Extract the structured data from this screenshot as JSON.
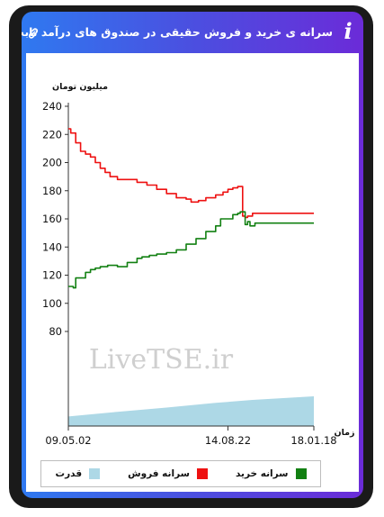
{
  "header": {
    "title": "سرانه ی خرید و فروش حقیقی در صندوق های درآمد ثابت",
    "info_icon": "info-icon",
    "link_icon": "link-icon"
  },
  "watermark": "LiveTSE.ir",
  "colors": {
    "sell": "#ee1111",
    "buy": "#128012",
    "power": "#add8e6",
    "header_start": "#2f79f0",
    "header_end": "#6b2bd8"
  },
  "chart_data": {
    "type": "line",
    "ylabel": "میلیون تومان",
    "xlabel": "زمان",
    "ylim": [
      80,
      240
    ],
    "y_ticks": [
      "240",
      "220",
      "200",
      "180",
      "160",
      "140",
      "120",
      "100",
      "80"
    ],
    "x_tick_labels": [
      "09.05.02",
      "14.08.22",
      "18.01.18"
    ],
    "x_tick_values": [
      0,
      0.65,
      1
    ],
    "grid": false,
    "legend_position": "bottom",
    "series": [
      {
        "name": "سرانه فروش",
        "color": "#ee1111",
        "x": [
          0,
          0.01,
          0.03,
          0.05,
          0.07,
          0.09,
          0.11,
          0.13,
          0.15,
          0.17,
          0.2,
          0.24,
          0.28,
          0.32,
          0.36,
          0.4,
          0.44,
          0.48,
          0.5,
          0.53,
          0.56,
          0.6,
          0.63,
          0.65,
          0.67,
          0.69,
          0.7,
          0.71,
          0.72,
          0.73,
          0.75,
          0.8,
          0.9,
          1.0
        ],
        "values": [
          224,
          221,
          214,
          208,
          206,
          204,
          200,
          196,
          193,
          190,
          188,
          188,
          186,
          184,
          181,
          178,
          175,
          174,
          172,
          173,
          175,
          177,
          179,
          181,
          182,
          183,
          183,
          162,
          161,
          162,
          164,
          164,
          164,
          164
        ]
      },
      {
        "name": "سرانه خرید",
        "color": "#128012",
        "x": [
          0,
          0.02,
          0.03,
          0.05,
          0.07,
          0.09,
          0.11,
          0.13,
          0.16,
          0.2,
          0.24,
          0.28,
          0.3,
          0.33,
          0.36,
          0.4,
          0.44,
          0.48,
          0.52,
          0.56,
          0.6,
          0.62,
          0.65,
          0.67,
          0.69,
          0.7,
          0.71,
          0.72,
          0.73,
          0.74,
          0.76,
          0.8,
          0.9,
          1.0
        ],
        "values": [
          112,
          111,
          118,
          118,
          122,
          124,
          125,
          126,
          127,
          126,
          129,
          132,
          133,
          134,
          135,
          136,
          138,
          142,
          146,
          151,
          155,
          160,
          160,
          163,
          164,
          165,
          165,
          156,
          158,
          155,
          157,
          157,
          157,
          157
        ]
      }
    ],
    "power": {
      "name": "قدرت",
      "color": "#add8e6",
      "x": [
        0,
        0.2,
        0.4,
        0.6,
        0.75,
        1.0
      ],
      "level": [
        0.32,
        0.48,
        0.62,
        0.78,
        0.88,
        1.0
      ]
    }
  }
}
